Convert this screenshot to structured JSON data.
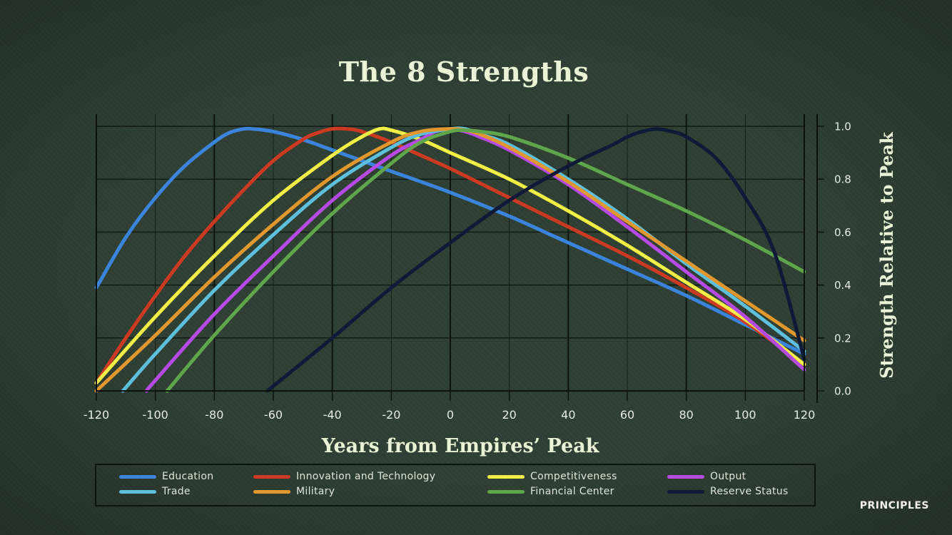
{
  "chart_data": {
    "type": "line",
    "title": "The 8 Strengths",
    "xlabel": "Years from Empires’ Peak",
    "ylabel": "Strength Relative to Peak",
    "xlim": [
      -120,
      120
    ],
    "ylim": [
      0.0,
      1.0
    ],
    "x_ticks": [
      "-120",
      "-100",
      "-80",
      "-60",
      "-40",
      "-20",
      "0",
      "20",
      "40",
      "60",
      "80",
      "100",
      "120"
    ],
    "y_ticks": [
      "0.0",
      "0.2",
      "0.4",
      "0.6",
      "0.8",
      "1.0"
    ],
    "y_axis_position": "right",
    "grid": true,
    "legend_position": "bottom",
    "series": [
      {
        "name": "Education",
        "color": "#3b84dc",
        "x": [
          -120,
          -110,
          -100,
          -90,
          -80,
          -75,
          -70,
          -67,
          -60,
          -50,
          -40,
          -20,
          0,
          20,
          40,
          60,
          80,
          100,
          120
        ],
        "y": [
          0.39,
          0.58,
          0.73,
          0.85,
          0.94,
          0.975,
          0.99,
          0.99,
          0.98,
          0.95,
          0.91,
          0.83,
          0.75,
          0.66,
          0.56,
          0.46,
          0.36,
          0.25,
          0.14
        ]
      },
      {
        "name": "Innovation and Technology",
        "color": "#cc3a22",
        "x": [
          -120,
          -110,
          -100,
          -90,
          -80,
          -70,
          -60,
          -50,
          -45,
          -40,
          -35,
          -30,
          -20,
          -10,
          0,
          20,
          40,
          60,
          80,
          100,
          120
        ],
        "y": [
          0.03,
          0.2,
          0.36,
          0.51,
          0.64,
          0.76,
          0.87,
          0.95,
          0.975,
          0.99,
          0.99,
          0.98,
          0.94,
          0.89,
          0.84,
          0.73,
          0.62,
          0.51,
          0.39,
          0.26,
          0.1
        ]
      },
      {
        "name": "Competitiveness",
        "color": "#f4ef46",
        "x": [
          -120,
          -100,
          -80,
          -60,
          -40,
          -30,
          -24,
          -20,
          -10,
          0,
          20,
          40,
          60,
          80,
          100,
          120
        ],
        "y": [
          0.03,
          0.28,
          0.51,
          0.72,
          0.89,
          0.96,
          0.99,
          0.985,
          0.95,
          0.9,
          0.8,
          0.68,
          0.55,
          0.41,
          0.27,
          0.1
        ]
      },
      {
        "name": "Output",
        "color": "#b64ae6",
        "x": [
          -103,
          -100,
          -80,
          -60,
          -40,
          -20,
          -10,
          -5,
          0,
          5,
          10,
          20,
          40,
          60,
          80,
          100,
          120
        ],
        "y": [
          0.0,
          0.04,
          0.29,
          0.51,
          0.72,
          0.89,
          0.95,
          0.98,
          0.99,
          0.98,
          0.96,
          0.91,
          0.78,
          0.62,
          0.45,
          0.28,
          0.08
        ]
      },
      {
        "name": "Trade",
        "color": "#5ebfdd",
        "x": [
          -111,
          -100,
          -80,
          -60,
          -40,
          -20,
          -10,
          0,
          5,
          10,
          20,
          40,
          60,
          80,
          100,
          120
        ],
        "y": [
          0.0,
          0.14,
          0.38,
          0.59,
          0.78,
          0.92,
          0.97,
          0.99,
          0.99,
          0.97,
          0.93,
          0.8,
          0.65,
          0.48,
          0.32,
          0.15
        ]
      },
      {
        "name": "Military",
        "color": "#e0982e",
        "x": [
          -120,
          -100,
          -80,
          -60,
          -40,
          -20,
          -10,
          0,
          5,
          10,
          20,
          40,
          60,
          80,
          100,
          120
        ],
        "y": [
          0.0,
          0.21,
          0.43,
          0.63,
          0.81,
          0.94,
          0.98,
          0.99,
          0.985,
          0.97,
          0.92,
          0.79,
          0.64,
          0.49,
          0.34,
          0.19
        ]
      },
      {
        "name": "Financial Center",
        "color": "#5ea54c",
        "x": [
          -96,
          -80,
          -60,
          -40,
          -20,
          -10,
          0,
          5,
          10,
          20,
          40,
          60,
          80,
          100,
          120
        ],
        "y": [
          0.0,
          0.21,
          0.45,
          0.67,
          0.86,
          0.94,
          0.98,
          0.985,
          0.98,
          0.96,
          0.88,
          0.78,
          0.68,
          0.57,
          0.45
        ]
      },
      {
        "name": "Reserve Status",
        "color": "#0f1938",
        "x": [
          -62,
          -40,
          -20,
          0,
          20,
          40,
          55,
          60,
          65,
          70,
          75,
          80,
          90,
          100,
          110,
          120
        ],
        "y": [
          0.0,
          0.2,
          0.39,
          0.56,
          0.72,
          0.85,
          0.93,
          0.96,
          0.98,
          0.99,
          0.98,
          0.96,
          0.88,
          0.73,
          0.52,
          0.12
        ]
      }
    ]
  },
  "brand": "PRINCIPLES"
}
